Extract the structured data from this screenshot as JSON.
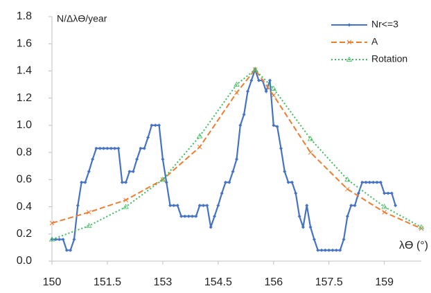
{
  "chart_data": {
    "type": "line",
    "y_label": "N/Δλϴ/year",
    "x_label": "λϴ (°)",
    "xlim": [
      150,
      160
    ],
    "xticks": [
      150,
      151.5,
      153,
      154.5,
      156,
      157.5,
      159
    ],
    "ylim": [
      0,
      1.8
    ],
    "yticks": [
      {
        "value": 0,
        "label": "0.0"
      },
      0.2,
      0.4,
      0.6,
      0.8,
      {
        "value": 1,
        "label": "1.0"
      },
      1.2,
      1.4,
      1.6,
      1.8
    ],
    "grid": false,
    "legend": "top-right",
    "series": [
      {
        "name": "Nr<=3",
        "color": "#4472c4",
        "line_style": "solid",
        "marker": "diamond",
        "x": [
          150,
          150.1,
          150.2,
          150.3,
          150.4,
          150.5,
          150.6,
          150.7,
          150.8,
          150.9,
          151,
          151.1,
          151.2,
          151.3,
          151.4,
          151.5,
          151.6,
          151.7,
          151.8,
          151.9,
          152,
          152.1,
          152.2,
          152.3,
          152.4,
          152.5,
          152.6,
          152.7,
          152.8,
          152.9,
          153,
          153.1,
          153.2,
          153.3,
          153.4,
          153.5,
          153.6,
          153.7,
          153.8,
          153.9,
          154,
          154.1,
          154.2,
          154.3,
          154.4,
          154.5,
          154.6,
          154.7,
          154.8,
          154.9,
          155,
          155.1,
          155.2,
          155.3,
          155.4,
          155.5,
          155.6,
          155.7,
          155.8,
          155.9,
          156,
          156.1,
          156.2,
          156.3,
          156.4,
          156.5,
          156.6,
          156.7,
          156.8,
          156.9,
          157,
          157.1,
          157.2,
          157.3,
          157.4,
          157.5,
          157.6,
          157.7,
          157.8,
          157.9,
          158,
          158.1,
          158.2,
          158.3,
          158.4,
          158.5,
          158.6,
          158.7,
          158.8,
          158.9,
          159,
          159.1,
          159.2,
          159.3
        ],
        "values": [
          0.16,
          0.16,
          0.16,
          0.16,
          0.08,
          0.08,
          0.16,
          0.41,
          0.58,
          0.58,
          0.66,
          0.75,
          0.83,
          0.83,
          0.83,
          0.83,
          0.83,
          0.83,
          0.83,
          0.58,
          0.58,
          0.66,
          0.66,
          0.75,
          0.83,
          0.83,
          0.91,
          1.0,
          1.0,
          1.0,
          0.75,
          0.58,
          0.41,
          0.41,
          0.41,
          0.33,
          0.33,
          0.33,
          0.33,
          0.33,
          0.41,
          0.41,
          0.41,
          0.25,
          0.33,
          0.41,
          0.5,
          0.58,
          0.58,
          0.66,
          0.75,
          1.0,
          1.08,
          1.25,
          1.33,
          1.41,
          1.33,
          1.33,
          1.25,
          1.33,
          1.0,
          0.99,
          0.83,
          0.66,
          0.58,
          0.58,
          0.5,
          0.33,
          0.25,
          0.41,
          0.25,
          0.16,
          0.08,
          0.08,
          0.08,
          0.08,
          0.08,
          0.08,
          0.08,
          0.16,
          0.33,
          0.41,
          0.41,
          0.5,
          0.58,
          0.58,
          0.58,
          0.58,
          0.58,
          0.58,
          0.5,
          0.5,
          0.5,
          0.41
        ]
      },
      {
        "name": "A",
        "color": "#ed7d31",
        "line_style": "dashed",
        "marker": "x",
        "x": [
          150,
          151,
          152,
          153,
          154,
          155,
          155.5,
          156,
          157,
          158,
          159,
          160
        ],
        "values": [
          0.28,
          0.36,
          0.45,
          0.6,
          0.84,
          1.24,
          1.41,
          1.22,
          0.8,
          0.53,
          0.36,
          0.24
        ]
      },
      {
        "name": "Rotation",
        "color": "#3dbb5c",
        "line_style": "dotted",
        "marker": "triangle",
        "x": [
          150,
          151,
          152,
          153,
          154,
          155,
          155.5,
          156,
          157,
          158,
          159,
          160
        ],
        "values": [
          0.16,
          0.26,
          0.4,
          0.6,
          0.92,
          1.3,
          1.41,
          1.27,
          0.9,
          0.6,
          0.4,
          0.25
        ]
      }
    ]
  }
}
